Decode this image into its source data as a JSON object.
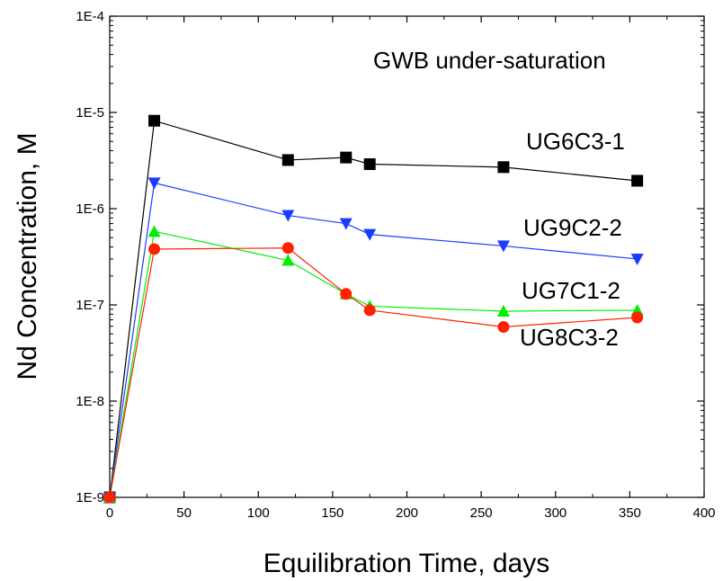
{
  "chart_data": {
    "type": "line",
    "title": "",
    "xlabel": "Equilibration Time, days",
    "ylabel": "Nd Concentration, M",
    "xlim": [
      0,
      400
    ],
    "ylim": [
      1e-09,
      0.0001
    ],
    "yscale": "log",
    "grid": false,
    "x_ticks": [
      0,
      50,
      100,
      150,
      200,
      250,
      300,
      350,
      400
    ],
    "x_tick_labels": [
      "0",
      "50",
      "100",
      "150",
      "200",
      "250",
      "300",
      "350",
      "400"
    ],
    "y_ticks": [
      1e-09,
      1e-08,
      1e-07,
      1e-06,
      1e-05,
      0.0001
    ],
    "y_tick_labels": [
      "1E-9",
      "1E-8",
      "1E-7",
      "1E-6",
      "1E-5",
      "1E-4"
    ],
    "annotations": [
      {
        "text": "GWB under-saturation"
      },
      {
        "text": "UG6C3-1"
      },
      {
        "text": "UG9C2-2"
      },
      {
        "text": "UG7C1-2"
      },
      {
        "text": "UG8C3-2"
      }
    ],
    "series": [
      {
        "marker": "square",
        "color": "#000000",
        "x": [
          0,
          30,
          120,
          159,
          175,
          265,
          355
        ],
        "y": [
          1e-09,
          8.2e-06,
          3.2e-06,
          3.4e-06,
          2.9e-06,
          2.7e-06,
          1.95e-06
        ]
      },
      {
        "marker": "triangle-down",
        "color": "#1a3cff",
        "x": [
          0,
          30,
          120,
          159,
          175,
          265,
          355
        ],
        "y": [
          1e-09,
          1.85e-06,
          8.5e-07,
          7e-07,
          5.4e-07,
          4.1e-07,
          3e-07
        ]
      },
      {
        "marker": "triangle-up",
        "color": "#00ee00",
        "x": [
          0,
          30,
          120,
          159,
          175,
          265,
          355
        ],
        "y": [
          1e-09,
          5.8e-07,
          2.9e-07,
          1.3e-07,
          9.7e-08,
          8.6e-08,
          8.8e-08
        ]
      },
      {
        "marker": "circle",
        "color": "#ff2200",
        "x": [
          0,
          30,
          120,
          159,
          175,
          265,
          355
        ],
        "y": [
          1e-09,
          3.8e-07,
          3.9e-07,
          1.3e-07,
          8.8e-08,
          5.9e-08,
          7.4e-08
        ]
      }
    ]
  }
}
